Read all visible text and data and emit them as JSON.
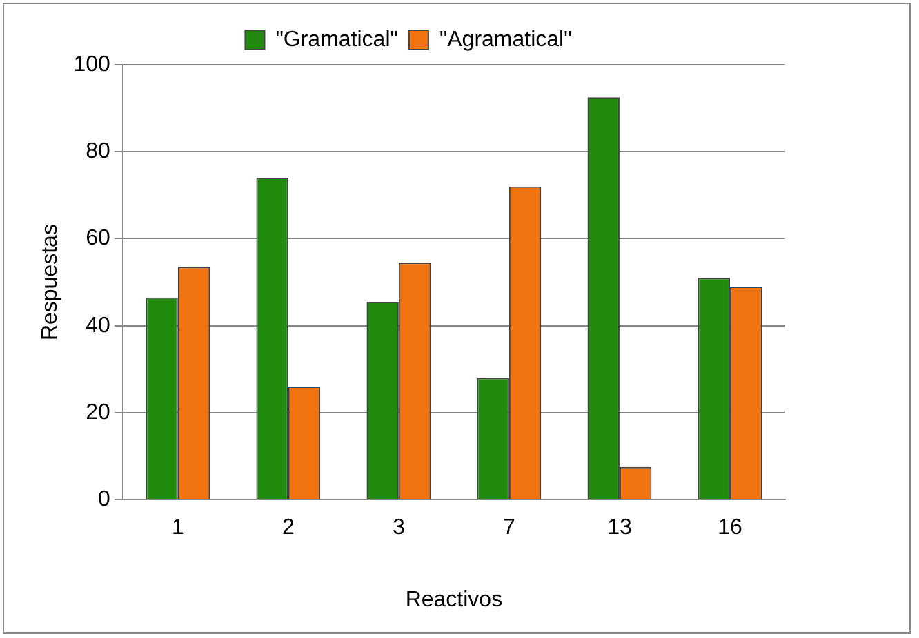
{
  "chart_data": {
    "type": "bar",
    "xlabel": "Reactivos",
    "ylabel": "Respuestas",
    "categories": [
      "1",
      "2",
      "3",
      "7",
      "13",
      "16"
    ],
    "series": [
      {
        "name": "\"Gramatical\"",
        "color": "#228b0f",
        "values": [
          46.5,
          74,
          45.5,
          28,
          92.5,
          51
        ]
      },
      {
        "name": "\"Agramatical\"",
        "color": "#f0730f",
        "values": [
          53.5,
          26,
          54.5,
          72,
          7.5,
          49
        ]
      }
    ],
    "ylim": [
      0,
      100
    ],
    "yticks": [
      0,
      20,
      40,
      60,
      80,
      100
    ],
    "grid": "y",
    "legend": "top"
  }
}
